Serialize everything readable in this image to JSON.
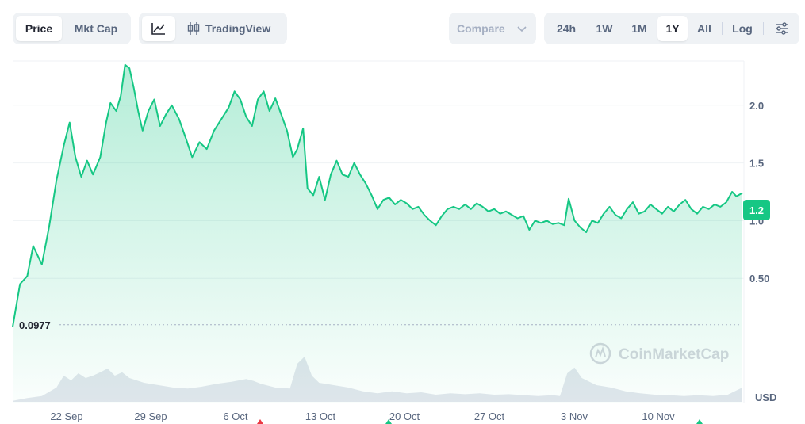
{
  "toolbar": {
    "metric_tabs": [
      {
        "label": "Price",
        "active": true
      },
      {
        "label": "Mkt Cap",
        "active": false
      }
    ],
    "chart_type": {
      "line_icon": "line-chart-icon",
      "tradingview_icon": "candlestick-icon",
      "tradingview_label": "TradingView"
    },
    "compare_label": "Compare",
    "ranges": [
      {
        "label": "24h",
        "active": false
      },
      {
        "label": "1W",
        "active": false
      },
      {
        "label": "1M",
        "active": false
      },
      {
        "label": "1Y",
        "active": true
      },
      {
        "label": "All",
        "active": false
      }
    ],
    "log_label": "Log",
    "settings_icon": "sliders-icon"
  },
  "chart_data": {
    "type": "area",
    "x_ticks": [
      "22 Sep",
      "29 Sep",
      "6 Oct",
      "13 Oct",
      "20 Oct",
      "27 Oct",
      "3 Nov",
      "10 Nov"
    ],
    "y_ticks": [
      "0.50",
      "1.0",
      "1.5",
      "2.0"
    ],
    "ylim": [
      0,
      2.55
    ],
    "baseline_label": "0.0977",
    "baseline_value": 0.0977,
    "current_price_label": "1.2",
    "currency_label": "USD",
    "watermark": "CoinMarketCap",
    "grid": true,
    "price_points": [
      [
        0,
        0.08
      ],
      [
        0.5,
        0.45
      ],
      [
        1,
        0.52
      ],
      [
        1.4,
        0.78
      ],
      [
        2,
        0.62
      ],
      [
        2.5,
        0.95
      ],
      [
        3,
        1.35
      ],
      [
        3.5,
        1.65
      ],
      [
        3.9,
        1.85
      ],
      [
        4.3,
        1.55
      ],
      [
        4.7,
        1.38
      ],
      [
        5.1,
        1.52
      ],
      [
        5.5,
        1.4
      ],
      [
        6,
        1.55
      ],
      [
        6.4,
        1.85
      ],
      [
        6.7,
        2.02
      ],
      [
        7.1,
        1.95
      ],
      [
        7.4,
        2.08
      ],
      [
        7.7,
        2.35
      ],
      [
        8,
        2.32
      ],
      [
        8.3,
        2.15
      ],
      [
        8.6,
        1.95
      ],
      [
        8.9,
        1.78
      ],
      [
        9.3,
        1.95
      ],
      [
        9.7,
        2.05
      ],
      [
        10.1,
        1.82
      ],
      [
        10.5,
        1.92
      ],
      [
        10.9,
        2.0
      ],
      [
        11.4,
        1.88
      ],
      [
        11.9,
        1.7
      ],
      [
        12.3,
        1.55
      ],
      [
        12.8,
        1.68
      ],
      [
        13.3,
        1.62
      ],
      [
        13.8,
        1.78
      ],
      [
        14.3,
        1.88
      ],
      [
        14.8,
        1.98
      ],
      [
        15.2,
        2.12
      ],
      [
        15.6,
        2.05
      ],
      [
        16,
        1.9
      ],
      [
        16.4,
        1.82
      ],
      [
        16.8,
        2.05
      ],
      [
        17.2,
        2.12
      ],
      [
        17.6,
        1.95
      ],
      [
        18,
        2.06
      ],
      [
        18.4,
        1.92
      ],
      [
        18.8,
        1.78
      ],
      [
        19.2,
        1.55
      ],
      [
        19.5,
        1.62
      ],
      [
        19.9,
        1.8
      ],
      [
        20.2,
        1.28
      ],
      [
        20.6,
        1.22
      ],
      [
        21,
        1.38
      ],
      [
        21.4,
        1.18
      ],
      [
        21.8,
        1.4
      ],
      [
        22.2,
        1.52
      ],
      [
        22.6,
        1.4
      ],
      [
        23,
        1.38
      ],
      [
        23.4,
        1.5
      ],
      [
        23.8,
        1.4
      ],
      [
        24.2,
        1.32
      ],
      [
        24.6,
        1.22
      ],
      [
        25,
        1.1
      ],
      [
        25.4,
        1.18
      ],
      [
        25.8,
        1.2
      ],
      [
        26.2,
        1.14
      ],
      [
        26.6,
        1.18
      ],
      [
        27,
        1.15
      ],
      [
        27.4,
        1.1
      ],
      [
        27.8,
        1.12
      ],
      [
        28.2,
        1.05
      ],
      [
        28.6,
        1.0
      ],
      [
        29,
        0.96
      ],
      [
        29.4,
        1.04
      ],
      [
        29.8,
        1.1
      ],
      [
        30.2,
        1.12
      ],
      [
        30.6,
        1.1
      ],
      [
        31,
        1.14
      ],
      [
        31.4,
        1.1
      ],
      [
        31.8,
        1.15
      ],
      [
        32.2,
        1.12
      ],
      [
        32.6,
        1.08
      ],
      [
        33,
        1.1
      ],
      [
        33.4,
        1.06
      ],
      [
        33.8,
        1.08
      ],
      [
        34.2,
        1.05
      ],
      [
        34.6,
        1.02
      ],
      [
        35,
        1.04
      ],
      [
        35.4,
        0.92
      ],
      [
        35.8,
        1.0
      ],
      [
        36.2,
        0.98
      ],
      [
        36.6,
        1.0
      ],
      [
        37,
        0.97
      ],
      [
        37.4,
        0.98
      ],
      [
        37.8,
        0.96
      ],
      [
        38.1,
        1.19
      ],
      [
        38.5,
        1.0
      ],
      [
        38.9,
        0.94
      ],
      [
        39.3,
        0.9
      ],
      [
        39.7,
        1.0
      ],
      [
        40.1,
        0.98
      ],
      [
        40.5,
        1.06
      ],
      [
        40.9,
        1.12
      ],
      [
        41.3,
        1.05
      ],
      [
        41.7,
        1.02
      ],
      [
        42.1,
        1.1
      ],
      [
        42.5,
        1.16
      ],
      [
        42.9,
        1.06
      ],
      [
        43.3,
        1.08
      ],
      [
        43.7,
        1.14
      ],
      [
        44.1,
        1.1
      ],
      [
        44.5,
        1.06
      ],
      [
        44.9,
        1.12
      ],
      [
        45.3,
        1.08
      ],
      [
        45.7,
        1.14
      ],
      [
        46.1,
        1.18
      ],
      [
        46.5,
        1.1
      ],
      [
        46.9,
        1.06
      ],
      [
        47.3,
        1.12
      ],
      [
        47.7,
        1.1
      ],
      [
        48.1,
        1.14
      ],
      [
        48.5,
        1.12
      ],
      [
        48.9,
        1.16
      ],
      [
        49.3,
        1.25
      ],
      [
        49.6,
        1.21
      ],
      [
        50,
        1.24
      ]
    ],
    "volume_points": [
      [
        0,
        0.02
      ],
      [
        1,
        0.08
      ],
      [
        2,
        0.12
      ],
      [
        3,
        0.3
      ],
      [
        3.5,
        0.55
      ],
      [
        4,
        0.45
      ],
      [
        4.5,
        0.6
      ],
      [
        5,
        0.5
      ],
      [
        5.5,
        0.55
      ],
      [
        6,
        0.62
      ],
      [
        6.5,
        0.7
      ],
      [
        7,
        0.55
      ],
      [
        7.5,
        0.62
      ],
      [
        8,
        0.5
      ],
      [
        9,
        0.4
      ],
      [
        10,
        0.35
      ],
      [
        11,
        0.3
      ],
      [
        12,
        0.28
      ],
      [
        13,
        0.32
      ],
      [
        14,
        0.38
      ],
      [
        15,
        0.42
      ],
      [
        16,
        0.48
      ],
      [
        16.5,
        0.44
      ],
      [
        17,
        0.38
      ],
      [
        18,
        0.3
      ],
      [
        19,
        0.28
      ],
      [
        19.5,
        0.8
      ],
      [
        20,
        0.95
      ],
      [
        20.5,
        0.55
      ],
      [
        21,
        0.4
      ],
      [
        22,
        0.35
      ],
      [
        23,
        0.3
      ],
      [
        24,
        0.22
      ],
      [
        25,
        0.18
      ],
      [
        26,
        0.22
      ],
      [
        27,
        0.18
      ],
      [
        28,
        0.2
      ],
      [
        29,
        0.15
      ],
      [
        30,
        0.18
      ],
      [
        31,
        0.16
      ],
      [
        32,
        0.18
      ],
      [
        33,
        0.15
      ],
      [
        34,
        0.16
      ],
      [
        35,
        0.14
      ],
      [
        36,
        0.12
      ],
      [
        37,
        0.14
      ],
      [
        37.5,
        0.12
      ],
      [
        38,
        0.6
      ],
      [
        38.5,
        0.72
      ],
      [
        39,
        0.5
      ],
      [
        40,
        0.35
      ],
      [
        41,
        0.3
      ],
      [
        42,
        0.22
      ],
      [
        43,
        0.18
      ],
      [
        44,
        0.15
      ],
      [
        45,
        0.14
      ],
      [
        46,
        0.12
      ],
      [
        47,
        0.14
      ],
      [
        48,
        0.12
      ],
      [
        49,
        0.15
      ],
      [
        50,
        0.3
      ]
    ]
  }
}
